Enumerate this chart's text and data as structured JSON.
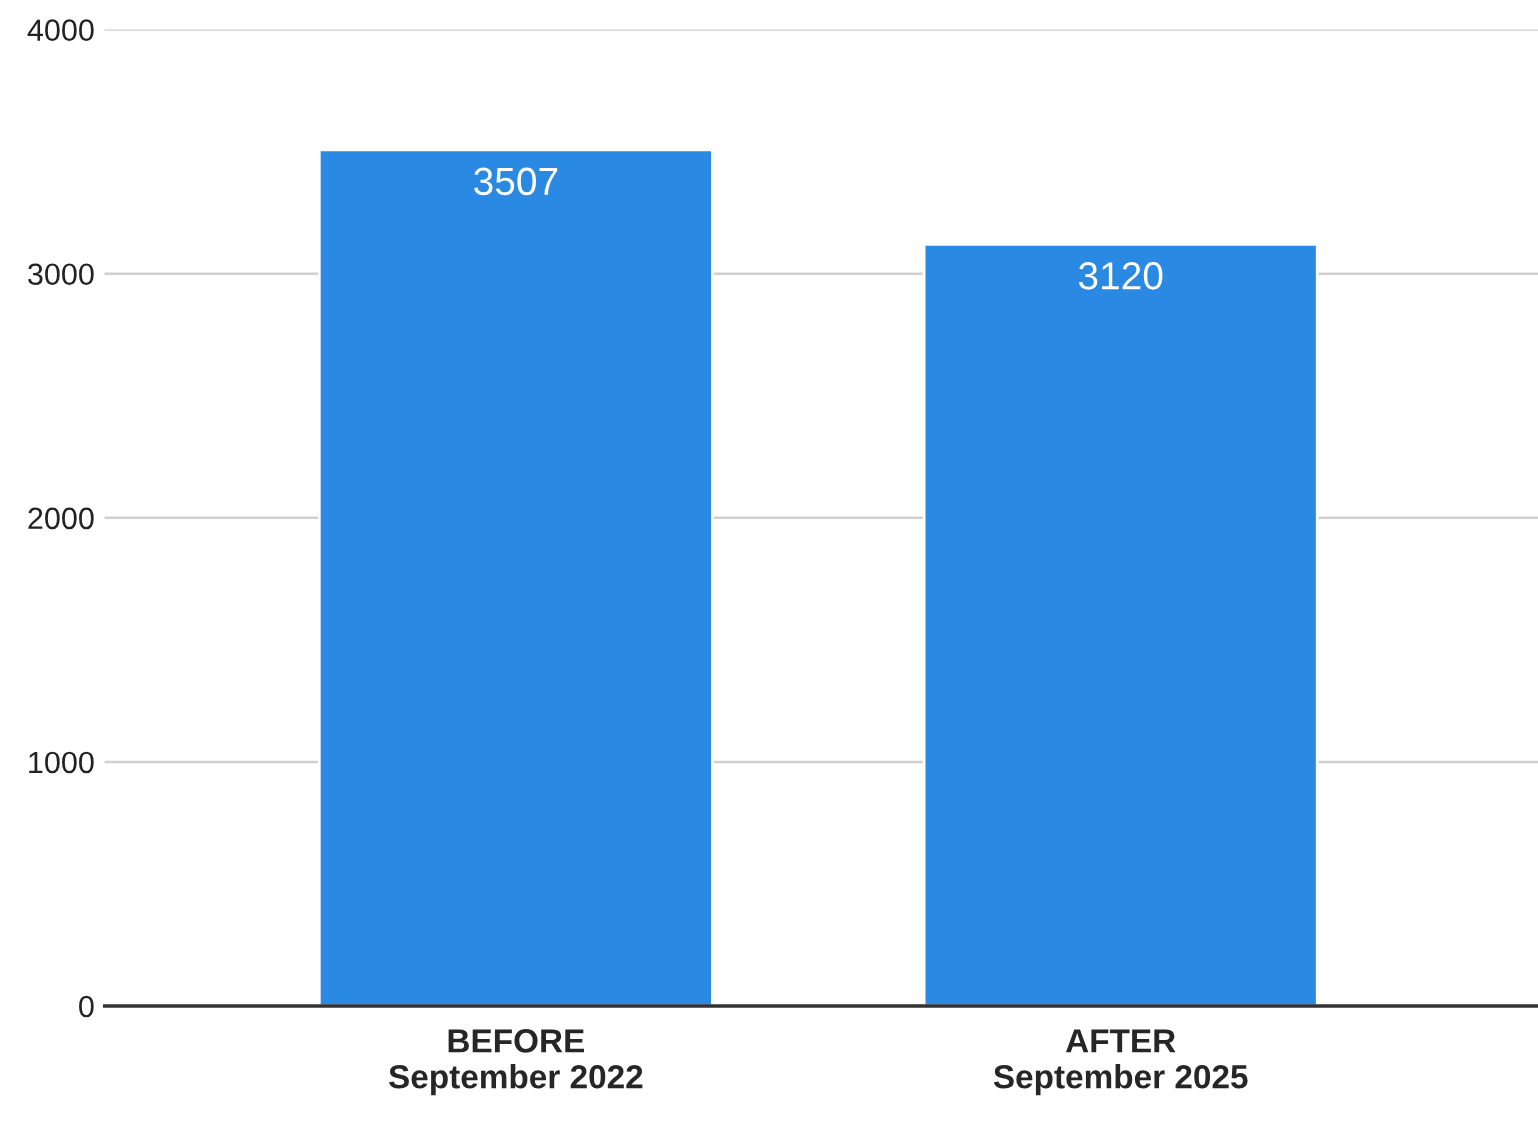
{
  "chart_data": {
    "type": "bar",
    "categories": [
      "BEFORE\nSeptember 2022",
      "AFTER\nSeptember 2025"
    ],
    "values": [
      3507,
      3120
    ],
    "color": "#2a89e2",
    "ylim": [
      0,
      4000
    ],
    "yticks": [
      0,
      1000,
      2000,
      3000,
      4000
    ],
    "grid": "y",
    "data_labels": true,
    "legend": false
  }
}
